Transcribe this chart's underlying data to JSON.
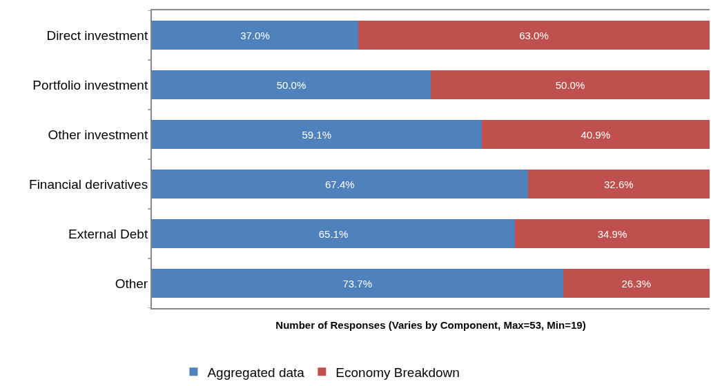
{
  "chart_data": {
    "type": "bar",
    "orientation": "horizontal",
    "stacked": true,
    "xlabel": "Number of Responses (Varies by Component, Max=53, Min=19)",
    "categories": [
      "Direct investment",
      "Portfolio investment",
      "Other investment",
      "Financial derivatives",
      "External Debt",
      "Other"
    ],
    "series": [
      {
        "name": "Aggregated data",
        "color": "#4f81bd",
        "values": [
          37.0,
          50.0,
          59.1,
          67.4,
          65.1,
          73.7
        ],
        "value_labels": [
          "37.0%",
          "50.0%",
          "59.1%",
          "67.4%",
          "65.1%",
          "73.7%"
        ]
      },
      {
        "name": "Economy Breakdown",
        "color": "#c0504d",
        "values": [
          63.0,
          50.0,
          40.9,
          32.6,
          34.9,
          26.3
        ],
        "value_labels": [
          "63.0%",
          "50.0%",
          "40.9%",
          "32.6%",
          "34.9%",
          "26.3%"
        ]
      }
    ],
    "tick_labels": "y",
    "legend": "bottom"
  }
}
